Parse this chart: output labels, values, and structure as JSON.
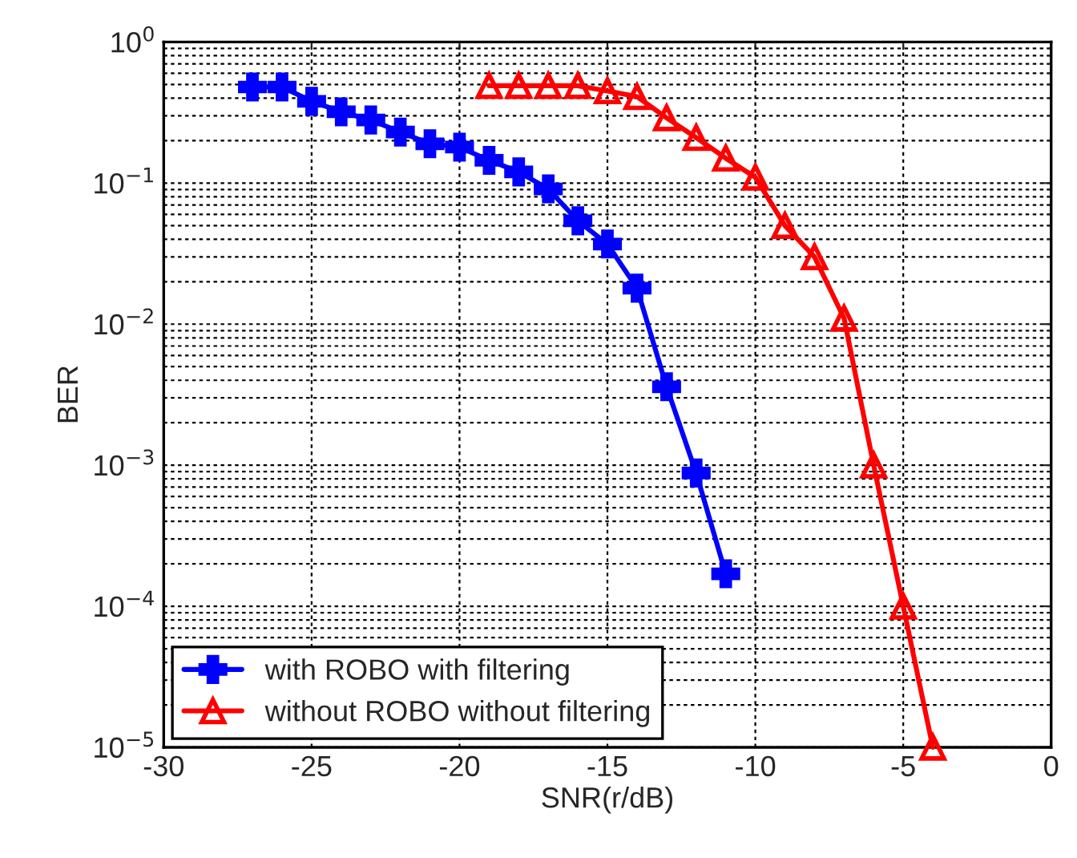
{
  "chart_data": {
    "type": "line",
    "xlabel": "SNR(r/dB)",
    "ylabel": "BER",
    "log": "y",
    "xlim": [
      -30,
      0
    ],
    "xticks": [
      -30,
      -25,
      -20,
      -15,
      -10,
      -5,
      0
    ],
    "ylim": [
      1e-05,
      1
    ],
    "yticks": [
      {
        "value": 1e-05,
        "label": "10$^{−5}$"
      },
      {
        "value": 0.0001,
        "label": "10$^{−4}$"
      },
      {
        "value": 0.001,
        "label": "10$^{−3}$"
      },
      {
        "value": 0.01,
        "label": "10$^{−2}$"
      },
      {
        "value": 0.1,
        "label": "10$^{−1}$"
      },
      {
        "value": 1,
        "label": "10$^{0}$"
      }
    ],
    "grid": true,
    "legend": "bottom left",
    "line_style": "solid",
    "series": [
      {
        "name": "with ROBO with filtering",
        "color": "#0000ff",
        "marker": "cross",
        "x": [
          -27,
          -26,
          -25,
          -24,
          -23,
          -22,
          -21,
          -20,
          -19,
          -18,
          -17,
          -16,
          -15,
          -14,
          -13,
          -12,
          -11
        ],
        "values": [
          0.48,
          0.48,
          0.38,
          0.32,
          0.28,
          0.23,
          0.19,
          0.18,
          0.145,
          0.12,
          0.091,
          0.054,
          0.037,
          0.018,
          0.0036,
          0.00088,
          0.00017
        ]
      },
      {
        "name": "without ROBO without filtering",
        "color": "#ff0000",
        "marker": "triangle",
        "x": [
          -19,
          -18,
          -17,
          -16,
          -15,
          -14,
          -13,
          -12,
          -11,
          -10,
          -9,
          -8,
          -7,
          -6,
          -5,
          -4
        ],
        "values": [
          0.49,
          0.49,
          0.49,
          0.49,
          0.45,
          0.41,
          0.29,
          0.21,
          0.15,
          0.11,
          0.05,
          0.03,
          0.011,
          0.001,
          0.0001,
          1e-05
        ]
      }
    ]
  }
}
